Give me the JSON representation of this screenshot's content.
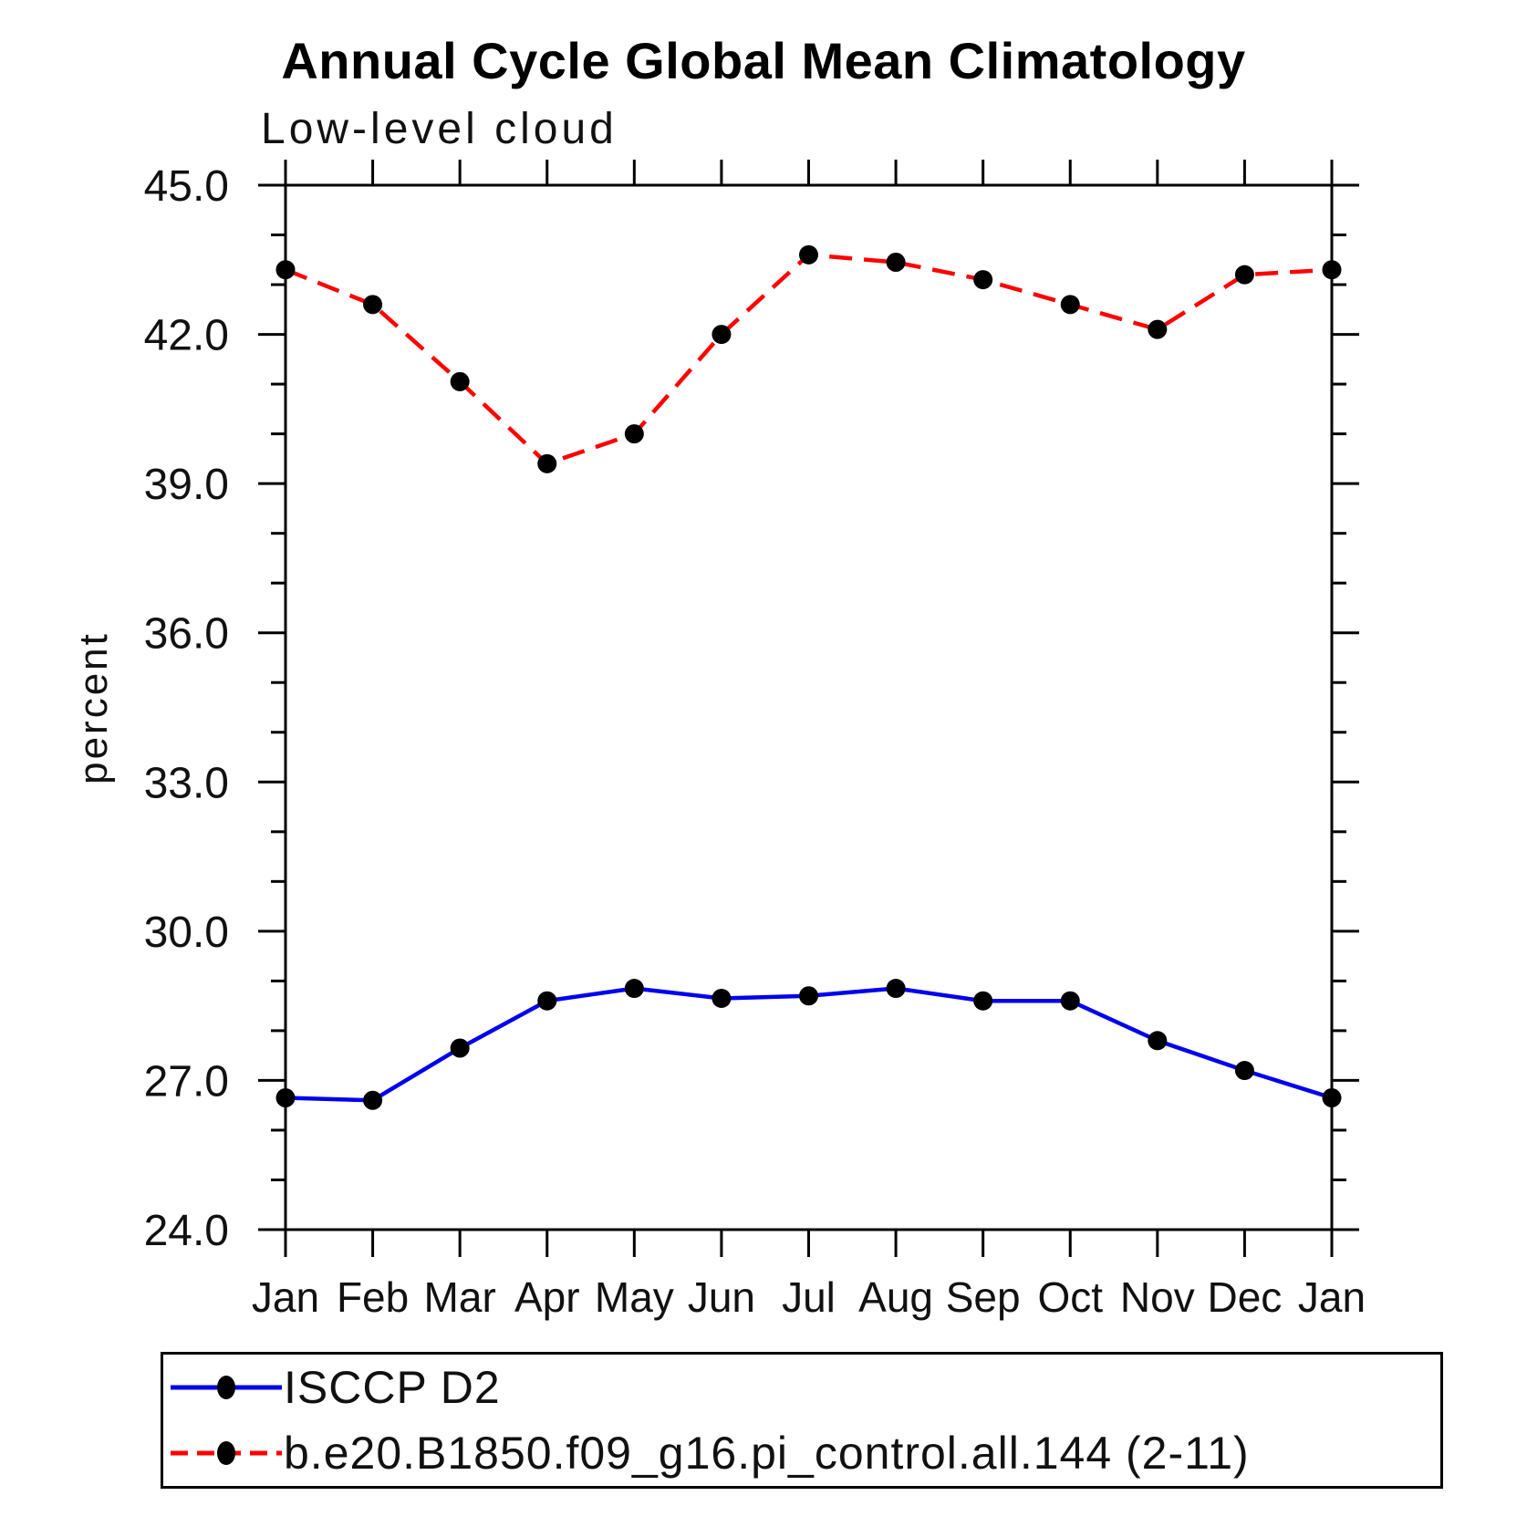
{
  "chart_data": {
    "type": "line",
    "title": "Annual Cycle Global Mean Climatology",
    "subtitle": "Low-level cloud",
    "xlabel": "",
    "ylabel": "percent",
    "categories": [
      "Jan",
      "Feb",
      "Mar",
      "Apr",
      "May",
      "Jun",
      "Jul",
      "Aug",
      "Sep",
      "Oct",
      "Nov",
      "Dec",
      "Jan"
    ],
    "series": [
      {
        "name": "ISCCP D2",
        "color": "#0000ee",
        "style": "solid",
        "marker": "filled-black-circle",
        "values": [
          26.65,
          26.6,
          27.65,
          28.6,
          28.85,
          28.65,
          28.7,
          28.85,
          28.6,
          28.6,
          27.8,
          27.2,
          26.65
        ]
      },
      {
        "name": "b.e20.B1850.f09_g16.pi_control.all.144 (2-11)",
        "color": "#ff0000",
        "style": "dashed",
        "marker": "filled-black-circle",
        "values": [
          43.3,
          42.6,
          41.05,
          39.4,
          40.0,
          42.0,
          43.6,
          43.45,
          43.1,
          42.6,
          42.1,
          43.2,
          43.3
        ]
      }
    ],
    "marker_color": "#000000",
    "ylim": [
      24.0,
      45.0
    ],
    "ytick_major_step": 3.0,
    "ytick_minor_step": 1.0,
    "ytick_labels": [
      "24.0",
      "27.0",
      "30.0",
      "33.0",
      "36.0",
      "39.0",
      "42.0",
      "45.0"
    ],
    "grid": false,
    "legend_position": "bottom-left-box"
  }
}
